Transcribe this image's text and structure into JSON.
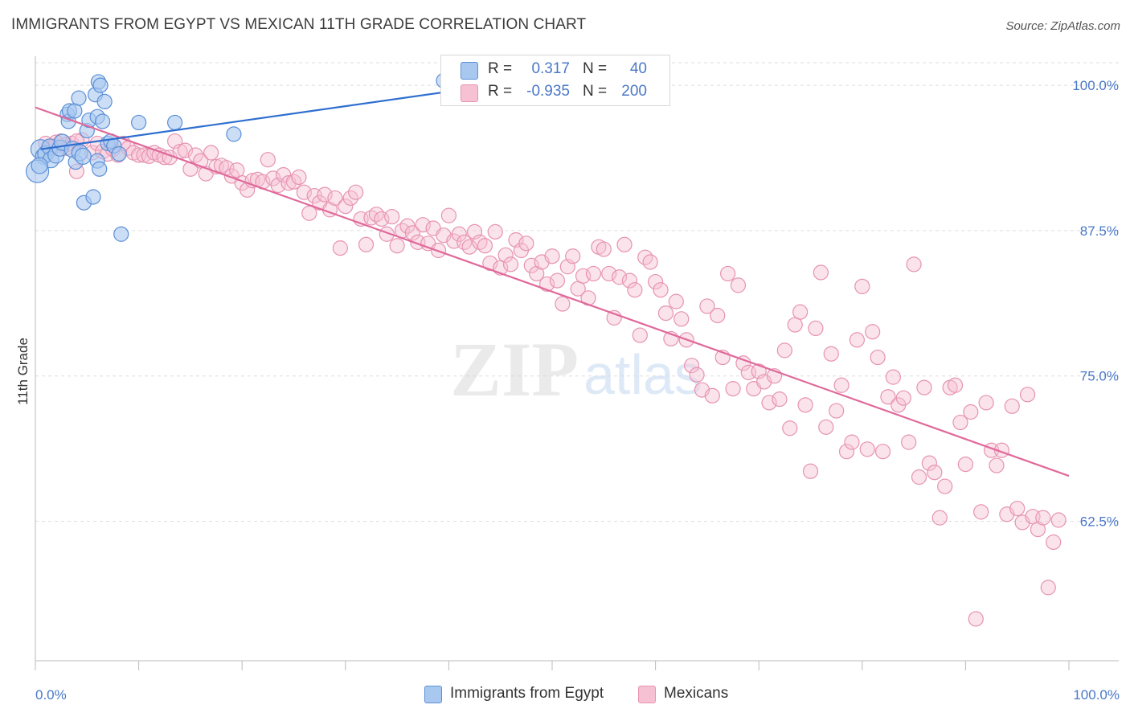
{
  "header": {
    "title": "IMMIGRANTS FROM EGYPT VS MEXICAN 11TH GRADE CORRELATION CHART",
    "source": "Source: ZipAtlas.com"
  },
  "watermark": {
    "zip": "ZIP",
    "atlas": "atlas"
  },
  "stats_legend": {
    "r_label": "R =",
    "n_label": "N =",
    "rows": [
      {
        "series": "Immigrants from Egypt",
        "r": "0.317",
        "n": "40"
      },
      {
        "series": "Mexicans",
        "r": "-0.935",
        "n": "200"
      }
    ]
  },
  "colors": {
    "egypt_fill": "#a9c8f0",
    "egypt_stroke": "#5b8fd6",
    "egypt_line": "#2f6fd0",
    "mex_fill": "#f6c1d3",
    "mex_stroke": "#e693b1",
    "mex_line": "#e0699a",
    "axis_text": "#4a78c8",
    "grid": "#dddddd"
  },
  "chart_data": {
    "type": "scatter",
    "title": "IMMIGRANTS FROM EGYPT VS MEXICAN 11TH GRADE CORRELATION CHART",
    "xlabel": "",
    "ylabel": "11th Grade",
    "xlim": [
      0,
      100
    ],
    "ylim": [
      50.5,
      102.5
    ],
    "x_tick_labels": [
      {
        "value": 0,
        "label": "0.0%"
      },
      {
        "value": 100,
        "label": "100.0%"
      }
    ],
    "y_ticks": [
      {
        "value": 100,
        "label": "100.0%"
      },
      {
        "value": 87.5,
        "label": "87.5%"
      },
      {
        "value": 75,
        "label": "75.0%"
      },
      {
        "value": 62.5,
        "label": "62.5%"
      }
    ],
    "x_minor_ticks": [
      0,
      10,
      20,
      30,
      40,
      50,
      60,
      70,
      80,
      90,
      100
    ],
    "legend_position": "bottom",
    "series": [
      {
        "name": "Immigrants from Egypt",
        "trend": {
          "x": [
            0.5,
            39.5
          ],
          "y": [
            94.5,
            99.4
          ]
        },
        "points": [
          [
            0.5,
            94.5
          ],
          [
            0.8,
            93.9
          ],
          [
            1.0,
            94.1
          ],
          [
            1.4,
            94.7
          ],
          [
            1.5,
            93.6
          ],
          [
            2.0,
            94.0
          ],
          [
            2.4,
            94.6
          ],
          [
            2.6,
            95.1
          ],
          [
            3.1,
            97.5
          ],
          [
            3.2,
            96.9
          ],
          [
            3.3,
            97.8
          ],
          [
            3.6,
            94.5
          ],
          [
            3.8,
            97.8
          ],
          [
            3.9,
            93.4
          ],
          [
            4.2,
            98.9
          ],
          [
            4.3,
            94.2
          ],
          [
            4.6,
            93.9
          ],
          [
            4.7,
            89.9
          ],
          [
            5.0,
            96.1
          ],
          [
            5.2,
            97.0
          ],
          [
            5.6,
            90.4
          ],
          [
            5.8,
            99.2
          ],
          [
            6.0,
            97.3
          ],
          [
            6.1,
            100.3
          ],
          [
            6.3,
            100.0
          ],
          [
            6.0,
            93.5
          ],
          [
            6.2,
            92.8
          ],
          [
            6.5,
            96.9
          ],
          [
            6.7,
            98.6
          ],
          [
            7.0,
            95.0
          ],
          [
            7.3,
            95.2
          ],
          [
            7.6,
            94.8
          ],
          [
            8.1,
            94.1
          ],
          [
            8.3,
            87.2
          ],
          [
            10.0,
            96.8
          ],
          [
            13.5,
            96.8
          ],
          [
            19.2,
            95.8
          ],
          [
            0.2,
            92.6
          ],
          [
            0.4,
            93.1
          ],
          [
            39.5,
            100.4
          ]
        ],
        "point_sizes": [
          12,
          10,
          10,
          10,
          10,
          10,
          10,
          10,
          9,
          9,
          9,
          10,
          9,
          9,
          9,
          10,
          10,
          9,
          9,
          9,
          9,
          9,
          9,
          9,
          9,
          9,
          9,
          9,
          9,
          9,
          9,
          9,
          9,
          9,
          9,
          9,
          9,
          14,
          10,
          9
        ]
      },
      {
        "name": "Mexicans",
        "trend": {
          "x": [
            0,
            100
          ],
          "y": [
            98.1,
            66.4
          ]
        },
        "points": [
          [
            1.0,
            95.0
          ],
          [
            1.5,
            94.5
          ],
          [
            2.0,
            94.8
          ],
          [
            2.5,
            95.2
          ],
          [
            3.0,
            94.9
          ],
          [
            3.5,
            95.0
          ],
          [
            4.0,
            92.6
          ],
          [
            4.5,
            95.3
          ],
          [
            5.5,
            94.2
          ],
          [
            6.0,
            95.0
          ],
          [
            6.5,
            94.3
          ],
          [
            7.0,
            94.1
          ],
          [
            7.5,
            94.5
          ],
          [
            8.0,
            94.0
          ],
          [
            8.5,
            95.0
          ],
          [
            9.0,
            94.6
          ],
          [
            9.5,
            94.2
          ],
          [
            10.0,
            94.0
          ],
          [
            10.5,
            94.0
          ],
          [
            11.0,
            93.9
          ],
          [
            11.5,
            94.2
          ],
          [
            12.0,
            94.0
          ],
          [
            12.5,
            93.8
          ],
          [
            13.0,
            93.8
          ],
          [
            13.5,
            95.2
          ],
          [
            14.0,
            94.3
          ],
          [
            14.5,
            94.4
          ],
          [
            15.0,
            92.8
          ],
          [
            15.5,
            94.0
          ],
          [
            16.0,
            93.5
          ],
          [
            16.5,
            92.4
          ],
          [
            17.0,
            94.2
          ],
          [
            17.5,
            93.0
          ],
          [
            18.0,
            93.1
          ],
          [
            18.5,
            92.9
          ],
          [
            19.0,
            92.2
          ],
          [
            19.5,
            92.7
          ],
          [
            20.0,
            91.6
          ],
          [
            20.5,
            91.0
          ],
          [
            21.0,
            91.8
          ],
          [
            21.5,
            91.9
          ],
          [
            22.0,
            91.7
          ],
          [
            22.5,
            93.6
          ],
          [
            23.0,
            92.0
          ],
          [
            23.5,
            91.4
          ],
          [
            24.0,
            92.3
          ],
          [
            24.5,
            91.6
          ],
          [
            25.0,
            91.7
          ],
          [
            25.5,
            92.1
          ],
          [
            26.0,
            90.8
          ],
          [
            26.5,
            89.0
          ],
          [
            27.0,
            90.5
          ],
          [
            27.5,
            89.9
          ],
          [
            28.0,
            90.6
          ],
          [
            28.5,
            89.3
          ],
          [
            29.0,
            90.3
          ],
          [
            29.5,
            86.0
          ],
          [
            30.0,
            89.6
          ],
          [
            30.5,
            90.3
          ],
          [
            31.0,
            90.8
          ],
          [
            31.5,
            88.5
          ],
          [
            32.0,
            86.3
          ],
          [
            32.5,
            88.6
          ],
          [
            33.0,
            88.9
          ],
          [
            33.5,
            88.5
          ],
          [
            34.0,
            87.2
          ],
          [
            34.5,
            88.7
          ],
          [
            35.0,
            86.2
          ],
          [
            35.5,
            87.5
          ],
          [
            36.0,
            87.9
          ],
          [
            36.5,
            87.3
          ],
          [
            37.0,
            86.5
          ],
          [
            37.5,
            88.0
          ],
          [
            38.0,
            86.4
          ],
          [
            38.5,
            87.7
          ],
          [
            39.0,
            85.8
          ],
          [
            39.5,
            87.1
          ],
          [
            40.0,
            88.8
          ],
          [
            40.5,
            86.6
          ],
          [
            41.0,
            87.2
          ],
          [
            41.5,
            86.5
          ],
          [
            42.0,
            86.1
          ],
          [
            42.5,
            87.4
          ],
          [
            43.0,
            86.5
          ],
          [
            43.5,
            86.2
          ],
          [
            44.0,
            84.7
          ],
          [
            44.5,
            87.4
          ],
          [
            45.0,
            84.3
          ],
          [
            45.5,
            85.4
          ],
          [
            46.0,
            84.6
          ],
          [
            46.5,
            86.7
          ],
          [
            47.0,
            85.8
          ],
          [
            47.5,
            86.4
          ],
          [
            48.0,
            84.5
          ],
          [
            48.5,
            83.8
          ],
          [
            49.0,
            84.8
          ],
          [
            49.5,
            82.9
          ],
          [
            50.0,
            85.3
          ],
          [
            50.5,
            83.2
          ],
          [
            51.0,
            81.2
          ],
          [
            51.5,
            84.4
          ],
          [
            52.0,
            85.3
          ],
          [
            52.5,
            82.5
          ],
          [
            53.0,
            83.6
          ],
          [
            53.5,
            81.7
          ],
          [
            54.0,
            83.8
          ],
          [
            54.5,
            86.1
          ],
          [
            55.0,
            85.9
          ],
          [
            55.5,
            83.8
          ],
          [
            56.0,
            80.0
          ],
          [
            56.5,
            83.5
          ],
          [
            57.0,
            86.3
          ],
          [
            57.5,
            83.2
          ],
          [
            58.0,
            82.4
          ],
          [
            58.5,
            78.5
          ],
          [
            59.0,
            85.2
          ],
          [
            59.5,
            84.8
          ],
          [
            60.0,
            83.1
          ],
          [
            60.5,
            82.4
          ],
          [
            61.0,
            80.4
          ],
          [
            61.5,
            78.2
          ],
          [
            62.0,
            81.4
          ],
          [
            62.5,
            79.9
          ],
          [
            63.0,
            78.1
          ],
          [
            63.5,
            75.9
          ],
          [
            64.0,
            75.1
          ],
          [
            64.5,
            73.8
          ],
          [
            65.0,
            81.0
          ],
          [
            65.5,
            73.3
          ],
          [
            66.0,
            80.2
          ],
          [
            66.5,
            76.6
          ],
          [
            67.0,
            83.8
          ],
          [
            67.5,
            73.9
          ],
          [
            68.0,
            82.8
          ],
          [
            68.5,
            76.1
          ],
          [
            69.0,
            75.3
          ],
          [
            69.5,
            73.9
          ],
          [
            70.0,
            75.4
          ],
          [
            70.5,
            74.5
          ],
          [
            71.0,
            72.7
          ],
          [
            71.5,
            75.0
          ],
          [
            72.0,
            73.0
          ],
          [
            72.5,
            77.2
          ],
          [
            73.0,
            70.5
          ],
          [
            73.5,
            79.4
          ],
          [
            74.0,
            80.5
          ],
          [
            74.5,
            72.5
          ],
          [
            75.0,
            66.8
          ],
          [
            75.5,
            79.1
          ],
          [
            76.0,
            83.9
          ],
          [
            76.5,
            70.6
          ],
          [
            77.0,
            76.9
          ],
          [
            77.5,
            72.0
          ],
          [
            78.0,
            74.2
          ],
          [
            78.5,
            68.5
          ],
          [
            79.0,
            69.3
          ],
          [
            79.5,
            78.1
          ],
          [
            80.0,
            82.7
          ],
          [
            80.5,
            68.7
          ],
          [
            81.0,
            78.8
          ],
          [
            81.5,
            76.6
          ],
          [
            82.0,
            68.5
          ],
          [
            82.5,
            73.2
          ],
          [
            83.0,
            74.9
          ],
          [
            83.5,
            72.5
          ],
          [
            84.0,
            73.1
          ],
          [
            84.5,
            69.3
          ],
          [
            85.0,
            84.6
          ],
          [
            85.5,
            66.3
          ],
          [
            86.0,
            74.0
          ],
          [
            86.5,
            67.5
          ],
          [
            87.0,
            66.7
          ],
          [
            87.5,
            62.8
          ],
          [
            88.0,
            65.5
          ],
          [
            88.5,
            74.0
          ],
          [
            89.0,
            74.2
          ],
          [
            89.5,
            71.0
          ],
          [
            90.0,
            67.4
          ],
          [
            90.5,
            71.9
          ],
          [
            91.0,
            54.1
          ],
          [
            91.5,
            63.3
          ],
          [
            92.0,
            72.7
          ],
          [
            92.5,
            68.6
          ],
          [
            93.0,
            67.3
          ],
          [
            93.5,
            68.6
          ],
          [
            94.0,
            63.1
          ],
          [
            94.5,
            72.4
          ],
          [
            95.0,
            63.6
          ],
          [
            95.5,
            62.4
          ],
          [
            96.0,
            73.4
          ],
          [
            96.5,
            62.9
          ],
          [
            97.0,
            61.8
          ],
          [
            97.5,
            62.8
          ],
          [
            98.0,
            56.8
          ],
          [
            98.5,
            60.7
          ],
          [
            99.0,
            62.6
          ],
          [
            1.5,
            94.7
          ],
          [
            3.0,
            94.6
          ],
          [
            2.0,
            95.1
          ],
          [
            4.0,
            95.2
          ]
        ]
      }
    ]
  },
  "legend_bottom": {
    "items": [
      {
        "label": "Immigrants from Egypt"
      },
      {
        "label": "Mexicans"
      }
    ]
  }
}
